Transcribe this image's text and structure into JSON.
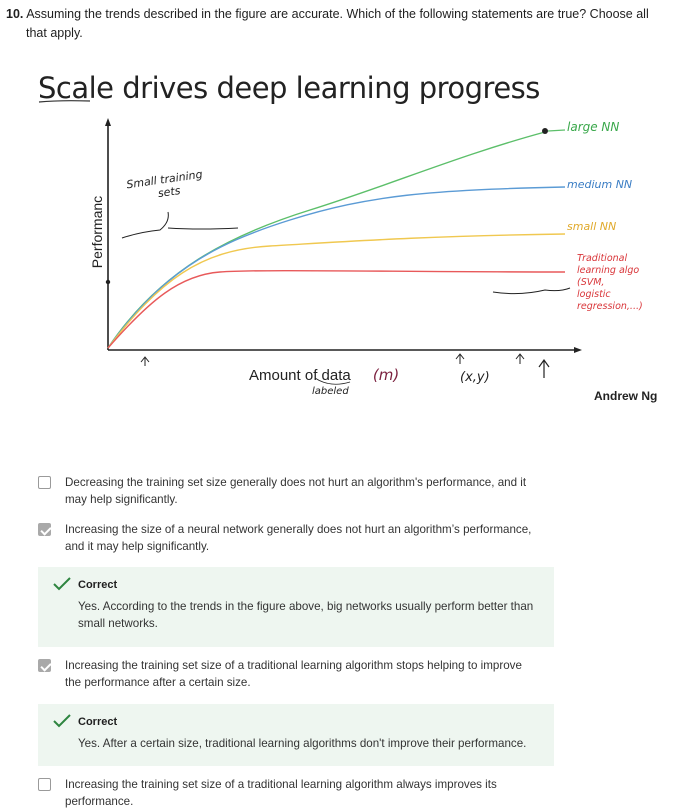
{
  "question": {
    "number": "10.",
    "text_line1": "Assuming the trends described in the figure are accurate. Which of the following statements are true? Choose all",
    "text_line2": "that apply."
  },
  "figure": {
    "title": "Scale drives deep learning progress",
    "ylabel": "Performanc",
    "xlabel": "Amount of data",
    "xlabel_var": "(m)",
    "labeled_note": "labeled",
    "xy_note": "(x,y)",
    "small_sets_note_1": "Small training",
    "small_sets_note_2": "sets",
    "author": "Andrew Ng",
    "curve_labels": {
      "large": "large NN",
      "medium": "medium NN",
      "small": "small NN",
      "trad_1": "Traditional",
      "trad_2": "learning algo",
      "trad_3": "(SVM,",
      "trad_4": "logistic",
      "trad_5": "regression,...)"
    },
    "colors": {
      "large": "#5cbf6a",
      "medium": "#5b9bd5",
      "small": "#f0c850",
      "trad": "#e8595a"
    }
  },
  "chart_data": {
    "type": "line",
    "title": "Scale drives deep learning progress",
    "xlabel": "Amount of data",
    "ylabel": "Performanc",
    "series": [
      {
        "name": "large NN",
        "shape": "keeps rising"
      },
      {
        "name": "medium NN",
        "shape": "rises then slowly flattens"
      },
      {
        "name": "small NN",
        "shape": "rises then plateaus"
      },
      {
        "name": "Traditional learning algo (SVM, logistic regression,...)",
        "shape": "plateaus early"
      }
    ]
  },
  "options": [
    {
      "text_1": "Decreasing the training set size generally does not hurt an algorithm's performance, and it",
      "text_2": "may help significantly.",
      "checked": false
    },
    {
      "text_1": "Increasing the size of a neural network generally does not hurt an algorithm’s performance,",
      "text_2": "and it may help significantly.",
      "checked": true
    },
    {
      "text_1": "Increasing the training set size of a traditional learning algorithm stops helping to improve",
      "text_2": "the performance after a certain size.",
      "checked": true
    },
    {
      "text_1": "Increasing the training set size of a traditional learning algorithm always improves its",
      "text_2": "performance.",
      "checked": false
    }
  ],
  "feedback": [
    {
      "title": "Correct",
      "text_1": "Yes. According to the trends in the figure above, big networks usually perform better than",
      "text_2": "small networks."
    },
    {
      "title": "Correct",
      "text_1": "Yes. After a certain size, traditional learning algorithms don't improve their performance.",
      "text_2": ""
    }
  ]
}
